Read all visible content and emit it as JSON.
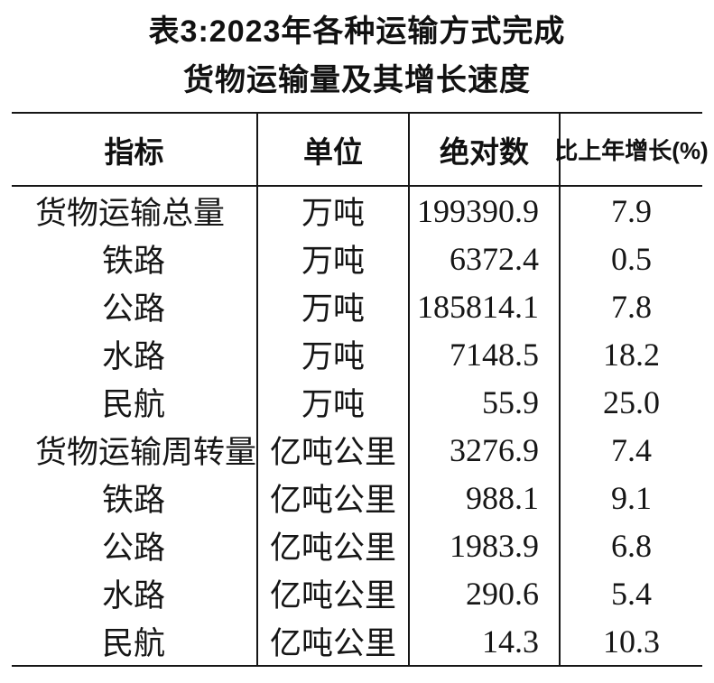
{
  "title": {
    "line1": "表3:2023年各种运输方式完成",
    "line2": "货物运输量及其增长速度"
  },
  "table": {
    "headers": [
      "指标",
      "单位",
      "绝对数",
      "比上年增长(%)"
    ],
    "rows": [
      {
        "indicator": "货物运输总量",
        "indent": false,
        "unit": "万吨",
        "value": "199390.9",
        "growth": "7.9"
      },
      {
        "indicator": "铁路",
        "indent": true,
        "unit": "万吨",
        "value": "6372.4",
        "growth": "0.5"
      },
      {
        "indicator": "公路",
        "indent": true,
        "unit": "万吨",
        "value": "185814.1",
        "growth": "7.8"
      },
      {
        "indicator": "水路",
        "indent": true,
        "unit": "万吨",
        "value": "7148.5",
        "growth": "18.2"
      },
      {
        "indicator": "民航",
        "indent": true,
        "unit": "万吨",
        "value": "55.9",
        "growth": "25.0"
      },
      {
        "indicator": "货物运输周转量",
        "indent": false,
        "unit": "亿吨公里",
        "value": "3276.9",
        "growth": "7.4"
      },
      {
        "indicator": "铁路",
        "indent": true,
        "unit": "亿吨公里",
        "value": "988.1",
        "growth": "9.1"
      },
      {
        "indicator": "公路",
        "indent": true,
        "unit": "亿吨公里",
        "value": "1983.9",
        "growth": "6.8"
      },
      {
        "indicator": "水路",
        "indent": true,
        "unit": "亿吨公里",
        "value": "290.6",
        "growth": "5.4"
      },
      {
        "indicator": "民航",
        "indent": true,
        "unit": "亿吨公里",
        "value": "14.3",
        "growth": "10.3"
      }
    ]
  },
  "chart_data": {
    "type": "table",
    "title": "表3:2023年各种运输方式完成货物运输量及其增长速度",
    "columns": [
      "指标",
      "单位",
      "绝对数",
      "比上年增长(%)"
    ],
    "rows": [
      [
        "货物运输总量",
        "万吨",
        199390.9,
        7.9
      ],
      [
        "铁路",
        "万吨",
        6372.4,
        0.5
      ],
      [
        "公路",
        "万吨",
        185814.1,
        7.8
      ],
      [
        "水路",
        "万吨",
        7148.5,
        18.2
      ],
      [
        "民航",
        "万吨",
        55.9,
        25.0
      ],
      [
        "货物运输周转量",
        "亿吨公里",
        3276.9,
        7.4
      ],
      [
        "铁路",
        "亿吨公里",
        988.1,
        9.1
      ],
      [
        "公路",
        "亿吨公里",
        1983.9,
        6.8
      ],
      [
        "水路",
        "亿吨公里",
        290.6,
        5.4
      ],
      [
        "民航",
        "亿吨公里",
        14.3,
        10.3
      ]
    ]
  },
  "colors": {
    "text": "#161616",
    "rule": "#161616",
    "background": "#ffffff"
  }
}
